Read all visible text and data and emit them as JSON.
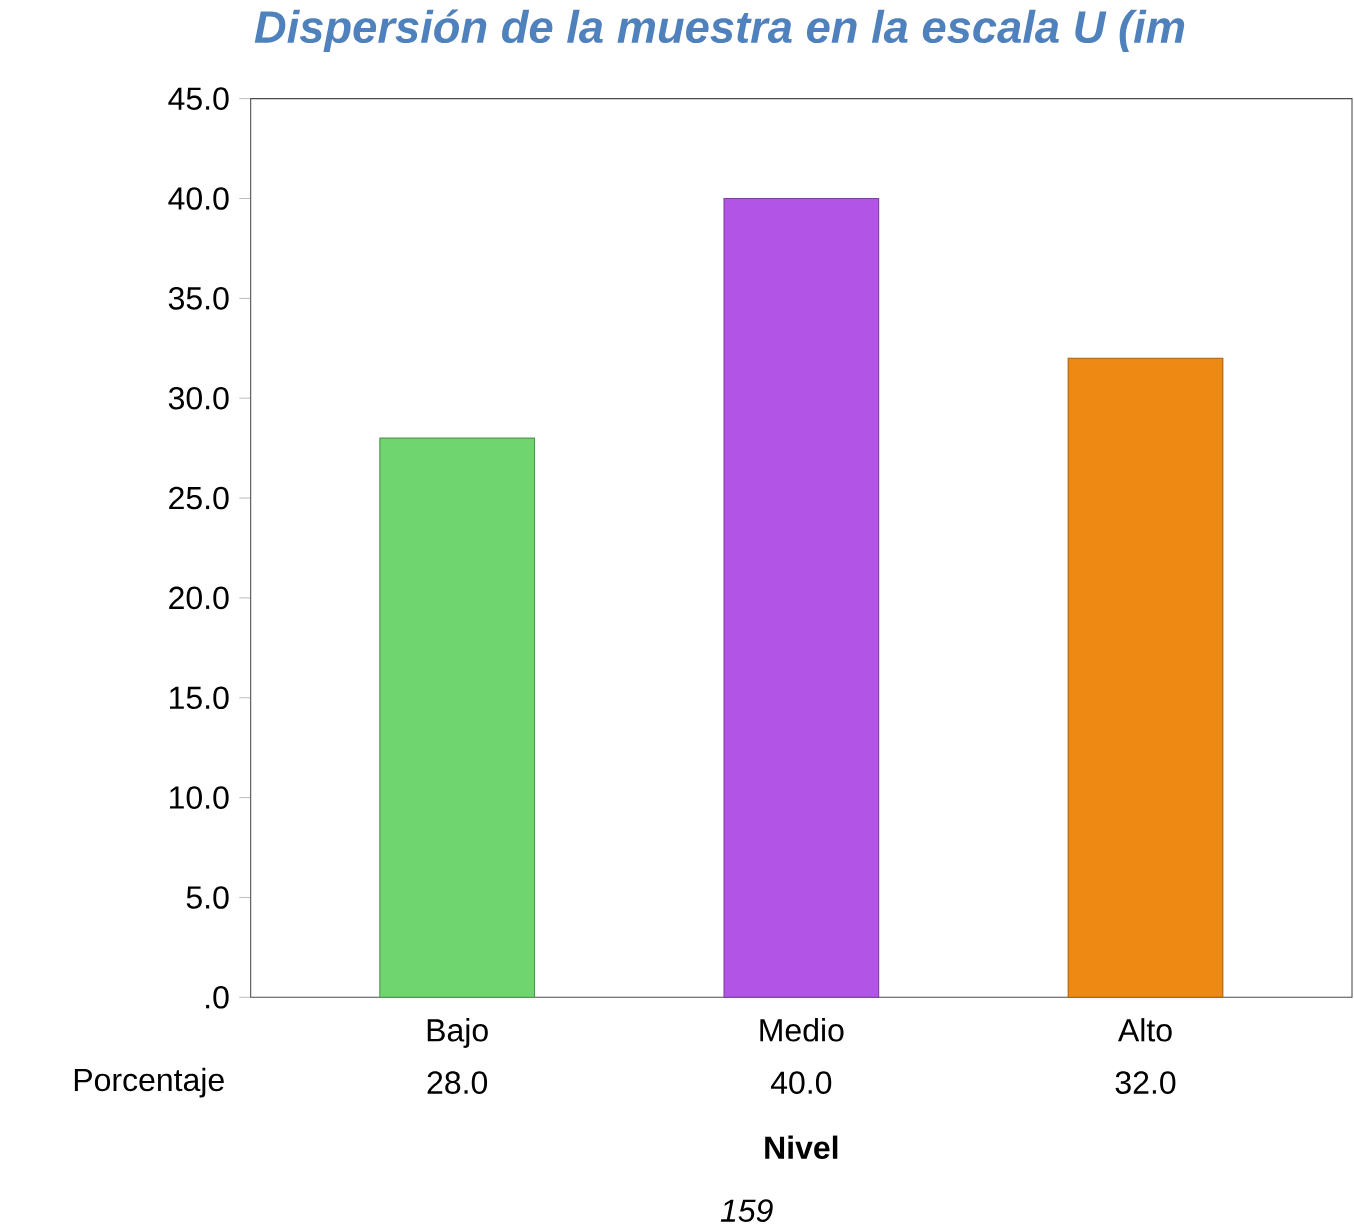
{
  "chart_data": {
    "type": "bar",
    "title": "Dispersión de la muestra en la escala U (im",
    "xlabel": "Nivel",
    "categories": [
      "Bajo",
      "Medio",
      "Alto"
    ],
    "series": [
      {
        "name": "Porcentaje",
        "colors": [
          "#6fd66f",
          "#b255e6",
          "#ee8a14"
        ],
        "values": [
          28.0,
          40.0,
          32.0
        ],
        "value_labels": [
          "28.0",
          "40.0",
          "32.0"
        ]
      }
    ],
    "ylim": [
      0,
      45
    ],
    "yticks": [
      {
        "value": 0,
        "label": ".0"
      },
      {
        "value": 5,
        "label": "5.0"
      },
      {
        "value": 10,
        "label": "10.0"
      },
      {
        "value": 15,
        "label": "15.0"
      },
      {
        "value": 20,
        "label": "20.0"
      },
      {
        "value": 25,
        "label": "25.0"
      },
      {
        "value": 30,
        "label": "30.0"
      },
      {
        "value": 35,
        "label": "35.0"
      },
      {
        "value": 40,
        "label": "40.0"
      },
      {
        "value": 45,
        "label": "45.0"
      }
    ],
    "grid": false,
    "annotations": [
      "159"
    ]
  }
}
